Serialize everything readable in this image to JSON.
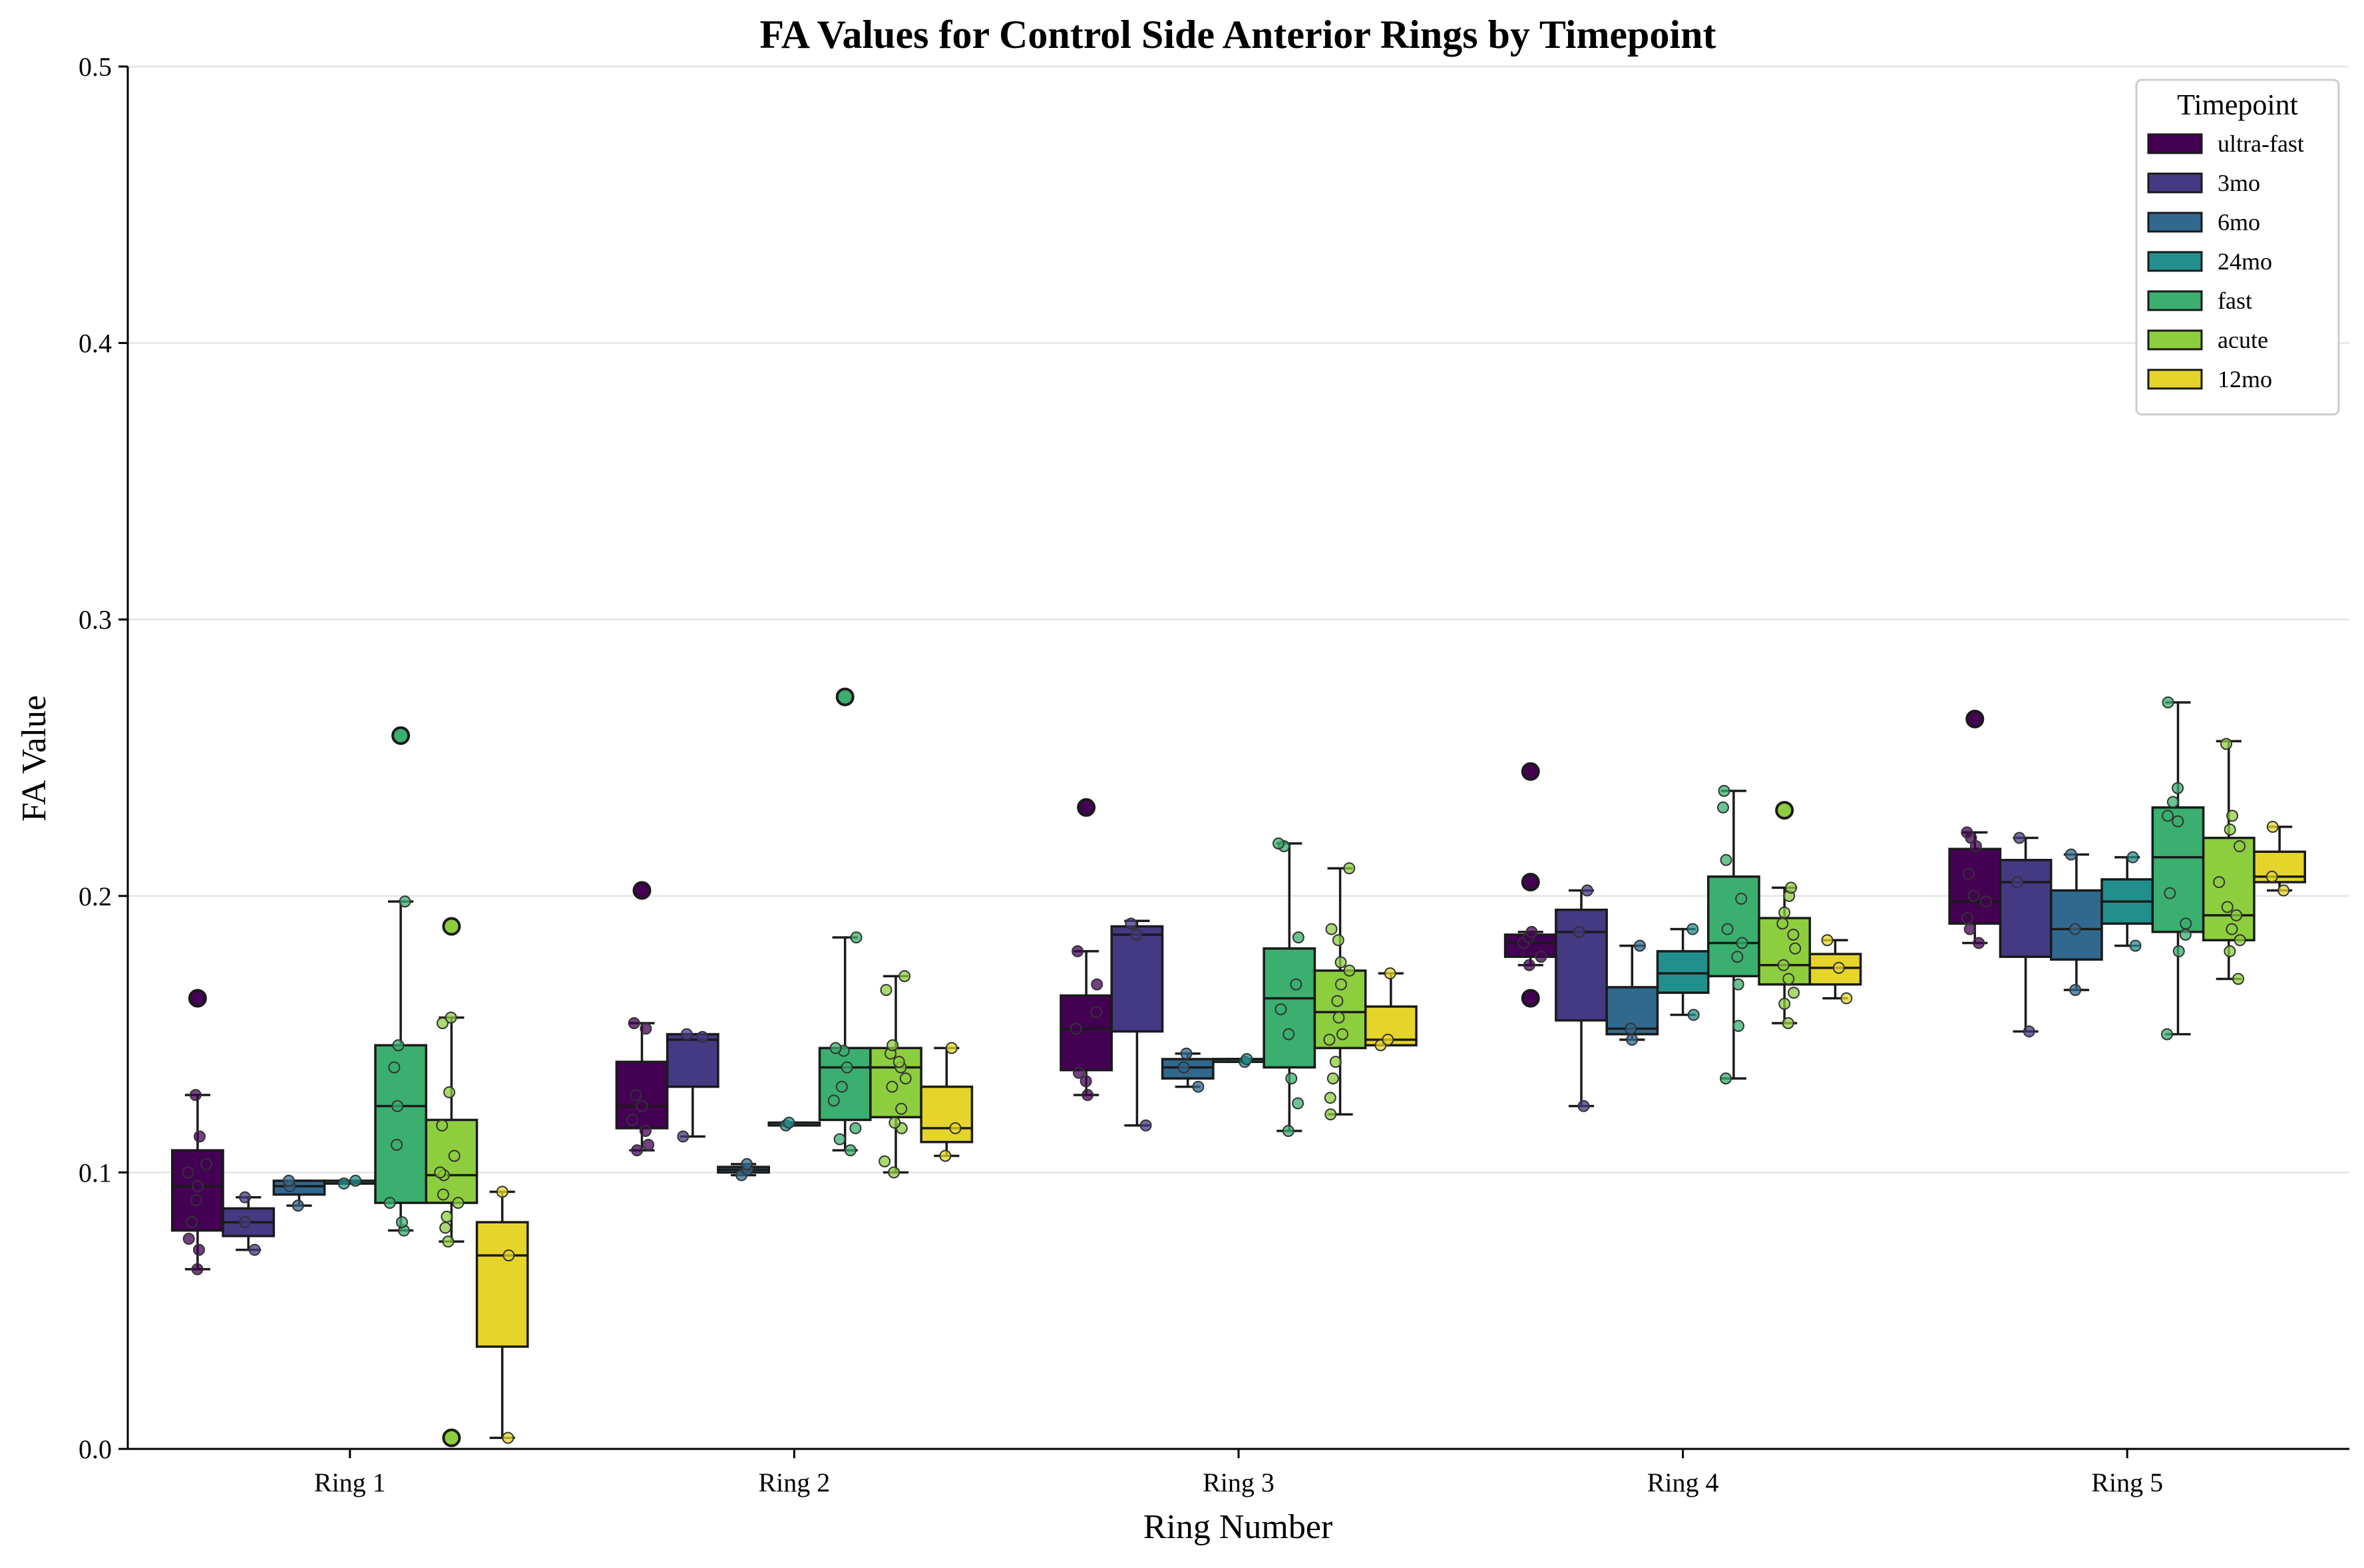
{
  "chart_data": {
    "type": "box",
    "title": "FA Values for Control Side Anterior Rings by Timepoint",
    "xlabel": "Ring Number",
    "ylabel": "FA Value",
    "ylim": [
      0,
      0.5
    ],
    "yticks": [
      "0.0",
      "0.1",
      "0.2",
      "0.3",
      "0.4",
      "0.5"
    ],
    "yticks_values": [
      0,
      0.1,
      0.2,
      0.3,
      0.4,
      0.5
    ],
    "grid": "horizontal",
    "legend_position": "top-right",
    "legend_title": "Timepoint",
    "categories": [
      "Ring 1",
      "Ring 2",
      "Ring 3",
      "Ring 4",
      "Ring 5"
    ],
    "series": [
      {
        "name": "ultra-fast",
        "color": "#440154",
        "boxes": [
          {
            "q1": 0.079,
            "median": 0.095,
            "q3": 0.108,
            "whislo": 0.065,
            "whishi": 0.128,
            "outliers": [
              0.163
            ],
            "points": [
              0.065,
              0.072,
              0.076,
              0.082,
              0.09,
              0.095,
              0.1,
              0.103,
              0.113,
              0.128
            ]
          },
          {
            "q1": 0.116,
            "median": 0.124,
            "q3": 0.14,
            "whislo": 0.108,
            "whishi": 0.154,
            "outliers": [
              0.202
            ],
            "points": [
              0.108,
              0.11,
              0.115,
              0.119,
              0.124,
              0.128,
              0.152,
              0.154
            ]
          },
          {
            "q1": 0.137,
            "median": 0.152,
            "q3": 0.164,
            "whislo": 0.128,
            "whishi": 0.18,
            "outliers": [
              0.232
            ],
            "points": [
              0.128,
              0.133,
              0.136,
              0.152,
              0.158,
              0.168,
              0.18
            ]
          },
          {
            "q1": 0.178,
            "median": 0.183,
            "q3": 0.186,
            "whislo": 0.175,
            "whishi": 0.187,
            "outliers": [
              0.245,
              0.205,
              0.163
            ],
            "points": [
              0.175,
              0.178,
              0.183,
              0.185,
              0.187
            ]
          },
          {
            "q1": 0.19,
            "median": 0.198,
            "q3": 0.217,
            "whislo": 0.183,
            "whishi": 0.223,
            "outliers": [
              0.264
            ],
            "points": [
              0.183,
              0.188,
              0.192,
              0.198,
              0.2,
              0.208,
              0.218,
              0.221,
              0.223
            ]
          }
        ]
      },
      {
        "name": "3mo",
        "color": "#443983",
        "boxes": [
          {
            "q1": 0.077,
            "median": 0.082,
            "q3": 0.087,
            "whislo": 0.072,
            "whishi": 0.091,
            "outliers": [],
            "points": [
              0.072,
              0.082,
              0.091
            ]
          },
          {
            "q1": 0.131,
            "median": 0.148,
            "q3": 0.15,
            "whislo": 0.113,
            "whishi": 0.15,
            "outliers": [],
            "points": [
              0.113,
              0.149,
              0.15
            ]
          },
          {
            "q1": 0.151,
            "median": 0.186,
            "q3": 0.189,
            "whislo": 0.117,
            "whishi": 0.191,
            "outliers": [],
            "points": [
              0.117,
              0.186,
              0.19
            ]
          },
          {
            "q1": 0.155,
            "median": 0.187,
            "q3": 0.195,
            "whislo": 0.124,
            "whishi": 0.202,
            "outliers": [],
            "points": [
              0.124,
              0.187,
              0.202
            ]
          },
          {
            "q1": 0.178,
            "median": 0.205,
            "q3": 0.213,
            "whislo": 0.151,
            "whishi": 0.221,
            "outliers": [],
            "points": [
              0.151,
              0.205,
              0.221
            ]
          }
        ]
      },
      {
        "name": "6mo",
        "color": "#31688e",
        "boxes": [
          {
            "q1": 0.092,
            "median": 0.095,
            "q3": 0.097,
            "whislo": 0.088,
            "whishi": 0.097,
            "outliers": [],
            "points": [
              0.088,
              0.095,
              0.097
            ]
          },
          {
            "q1": 0.1,
            "median": 0.101,
            "q3": 0.102,
            "whislo": 0.099,
            "whishi": 0.103,
            "outliers": [],
            "points": [
              0.099,
              0.101,
              0.103
            ]
          },
          {
            "q1": 0.134,
            "median": 0.138,
            "q3": 0.141,
            "whislo": 0.131,
            "whishi": 0.143,
            "outliers": [],
            "points": [
              0.131,
              0.138,
              0.143
            ]
          },
          {
            "q1": 0.15,
            "median": 0.152,
            "q3": 0.167,
            "whislo": 0.148,
            "whishi": 0.182,
            "outliers": [],
            "points": [
              0.148,
              0.152,
              0.182
            ]
          },
          {
            "q1": 0.177,
            "median": 0.188,
            "q3": 0.202,
            "whislo": 0.166,
            "whishi": 0.215,
            "outliers": [],
            "points": [
              0.166,
              0.188,
              0.215
            ]
          }
        ]
      },
      {
        "name": "24mo",
        "color": "#21908d",
        "boxes": [
          {
            "q1": 0.096,
            "median": 0.096,
            "q3": 0.097,
            "whislo": 0.096,
            "whishi": 0.097,
            "outliers": [],
            "points": [
              0.096,
              0.097
            ]
          },
          {
            "q1": 0.117,
            "median": 0.118,
            "q3": 0.118,
            "whislo": 0.117,
            "whishi": 0.118,
            "outliers": [],
            "points": [
              0.117,
              0.118
            ]
          },
          {
            "q1": 0.14,
            "median": 0.141,
            "q3": 0.141,
            "whislo": 0.14,
            "whishi": 0.141,
            "outliers": [],
            "points": [
              0.14,
              0.141
            ]
          },
          {
            "q1": 0.165,
            "median": 0.172,
            "q3": 0.18,
            "whislo": 0.157,
            "whishi": 0.188,
            "outliers": [],
            "points": [
              0.157,
              0.188
            ]
          },
          {
            "q1": 0.19,
            "median": 0.198,
            "q3": 0.206,
            "whislo": 0.182,
            "whishi": 0.214,
            "outliers": [],
            "points": [
              0.182,
              0.214
            ]
          }
        ]
      },
      {
        "name": "fast",
        "color": "#3aaf6f",
        "boxes": [
          {
            "q1": 0.089,
            "median": 0.124,
            "q3": 0.146,
            "whislo": 0.079,
            "whishi": 0.198,
            "outliers": [
              0.258
            ],
            "points": [
              0.079,
              0.082,
              0.089,
              0.11,
              0.124,
              0.138,
              0.146,
              0.198
            ]
          },
          {
            "q1": 0.119,
            "median": 0.138,
            "q3": 0.145,
            "whislo": 0.108,
            "whishi": 0.185,
            "outliers": [
              0.272
            ],
            "points": [
              0.108,
              0.112,
              0.116,
              0.126,
              0.131,
              0.138,
              0.144,
              0.145,
              0.185
            ]
          },
          {
            "q1": 0.138,
            "median": 0.163,
            "q3": 0.181,
            "whislo": 0.115,
            "whishi": 0.219,
            "outliers": [],
            "points": [
              0.115,
              0.125,
              0.134,
              0.15,
              0.159,
              0.168,
              0.185,
              0.218,
              0.219
            ]
          },
          {
            "q1": 0.171,
            "median": 0.183,
            "q3": 0.207,
            "whislo": 0.134,
            "whishi": 0.238,
            "outliers": [],
            "points": [
              0.134,
              0.153,
              0.168,
              0.178,
              0.183,
              0.188,
              0.199,
              0.213,
              0.232,
              0.238
            ]
          },
          {
            "q1": 0.187,
            "median": 0.214,
            "q3": 0.232,
            "whislo": 0.15,
            "whishi": 0.27,
            "outliers": [],
            "points": [
              0.15,
              0.18,
              0.186,
              0.19,
              0.201,
              0.227,
              0.229,
              0.234,
              0.239,
              0.27
            ]
          }
        ]
      },
      {
        "name": "acute",
        "color": "#8dce3f",
        "boxes": [
          {
            "q1": 0.089,
            "median": 0.099,
            "q3": 0.119,
            "whislo": 0.075,
            "whishi": 0.156,
            "outliers": [
              0.189,
              0.004
            ],
            "points": [
              0.075,
              0.08,
              0.084,
              0.089,
              0.092,
              0.099,
              0.1,
              0.106,
              0.117,
              0.129,
              0.154,
              0.156
            ]
          },
          {
            "q1": 0.12,
            "median": 0.138,
            "q3": 0.145,
            "whislo": 0.1,
            "whishi": 0.171,
            "outliers": [],
            "points": [
              0.1,
              0.104,
              0.116,
              0.118,
              0.123,
              0.131,
              0.134,
              0.138,
              0.14,
              0.143,
              0.146,
              0.166,
              0.171
            ]
          },
          {
            "q1": 0.145,
            "median": 0.158,
            "q3": 0.173,
            "whislo": 0.121,
            "whishi": 0.21,
            "outliers": [],
            "points": [
              0.121,
              0.127,
              0.134,
              0.14,
              0.148,
              0.15,
              0.156,
              0.162,
              0.168,
              0.173,
              0.176,
              0.184,
              0.188,
              0.21
            ]
          },
          {
            "q1": 0.168,
            "median": 0.175,
            "q3": 0.192,
            "whislo": 0.154,
            "whishi": 0.203,
            "outliers": [
              0.231
            ],
            "points": [
              0.154,
              0.161,
              0.165,
              0.17,
              0.175,
              0.181,
              0.186,
              0.19,
              0.194,
              0.2,
              0.203
            ]
          },
          {
            "q1": 0.184,
            "median": 0.193,
            "q3": 0.221,
            "whislo": 0.17,
            "whishi": 0.256,
            "outliers": [],
            "points": [
              0.17,
              0.18,
              0.184,
              0.188,
              0.193,
              0.196,
              0.205,
              0.218,
              0.224,
              0.229,
              0.255
            ]
          }
        ]
      },
      {
        "name": "12mo",
        "color": "#e5d52a",
        "boxes": [
          {
            "q1": 0.037,
            "median": 0.07,
            "q3": 0.082,
            "whislo": 0.004,
            "whishi": 0.093,
            "outliers": [],
            "points": [
              0.004,
              0.07,
              0.093
            ]
          },
          {
            "q1": 0.111,
            "median": 0.116,
            "q3": 0.131,
            "whislo": 0.106,
            "whishi": 0.145,
            "outliers": [],
            "points": [
              0.106,
              0.116,
              0.145
            ]
          },
          {
            "q1": 0.146,
            "median": 0.148,
            "q3": 0.16,
            "whislo": 0.146,
            "whishi": 0.172,
            "outliers": [],
            "points": [
              0.146,
              0.148,
              0.172
            ]
          },
          {
            "q1": 0.168,
            "median": 0.174,
            "q3": 0.179,
            "whislo": 0.163,
            "whishi": 0.184,
            "outliers": [],
            "points": [
              0.163,
              0.174,
              0.184
            ]
          },
          {
            "q1": 0.205,
            "median": 0.207,
            "q3": 0.216,
            "whislo": 0.202,
            "whishi": 0.225,
            "outliers": [],
            "points": [
              0.202,
              0.207,
              0.225
            ]
          }
        ]
      }
    ]
  }
}
